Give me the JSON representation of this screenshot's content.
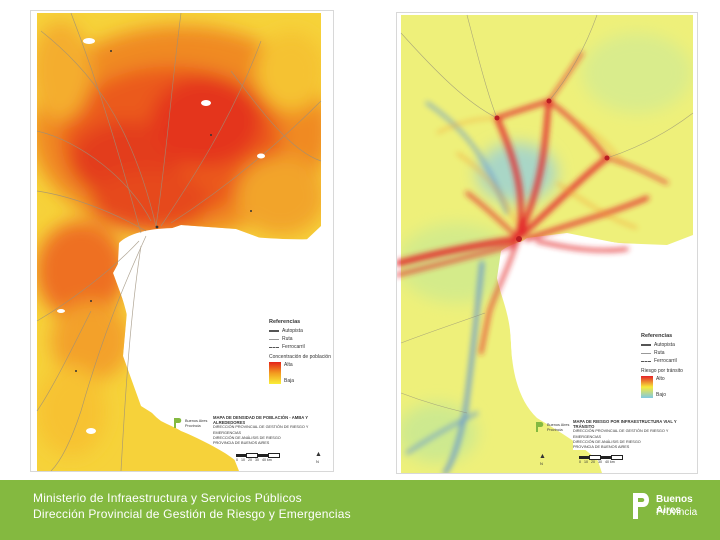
{
  "footer": {
    "ministry_line_1": "Ministerio de Infraestructura y Servicios Públicos",
    "ministry_line_2": "Dirección Provincial de Gestión de Riesgo y Emergencias",
    "brand_line_1": "Buenos Aires",
    "brand_line_2": "Provincia",
    "background_color": "#84b940"
  },
  "left_map": {
    "legend_title": "Referencias",
    "legend_items": [
      "Autopista",
      "Ruta",
      "Ferrocarril",
      "Concentración de población",
      "Alta",
      "Baja"
    ],
    "ramp_colors": [
      "#e4231a",
      "#f39a1f",
      "#f9ef38"
    ],
    "logo_text": "Buenos Aires Provincia",
    "title_lines": [
      "MAPA DE DENSIDAD DE POBLACIÓN - AMBA Y ALREDEDORES",
      "DIRECCIÓN PROVINCIAL DE GESTIÓN DE RIESGO Y EMERGENCIAS",
      "DIRECCIÓN DE ANÁLISIS DE RIESGO",
      "PROVINCIA DE BUENOS AIRES"
    ],
    "north_symbol": "N",
    "scale_labels": [
      "0",
      "10",
      "20",
      "30",
      "40 km"
    ]
  },
  "right_map": {
    "legend_title": "Referencias",
    "legend_items": [
      "Autopista",
      "Ruta",
      "Ferrocarril",
      "Riesgo por tránsito",
      "Alto",
      "Bajo"
    ],
    "ramp_colors": [
      "#e32227",
      "#f7e93a",
      "#7ec8e3"
    ],
    "logo_text": "Buenos Aires Provincia",
    "title_lines": [
      "MAPA DE RIESGO POR INFRAESTRUCTURA VIAL Y TRÁNSITO",
      "DIRECCIÓN PROVINCIAL DE GESTIÓN DE RIESGO Y EMERGENCIAS",
      "DIRECCIÓN DE ANÁLISIS DE RIESGO",
      "PROVINCIA DE BUENOS AIRES"
    ],
    "north_symbol": "N",
    "scale_labels": [
      "0",
      "10",
      "20",
      "30",
      "40 km"
    ]
  }
}
